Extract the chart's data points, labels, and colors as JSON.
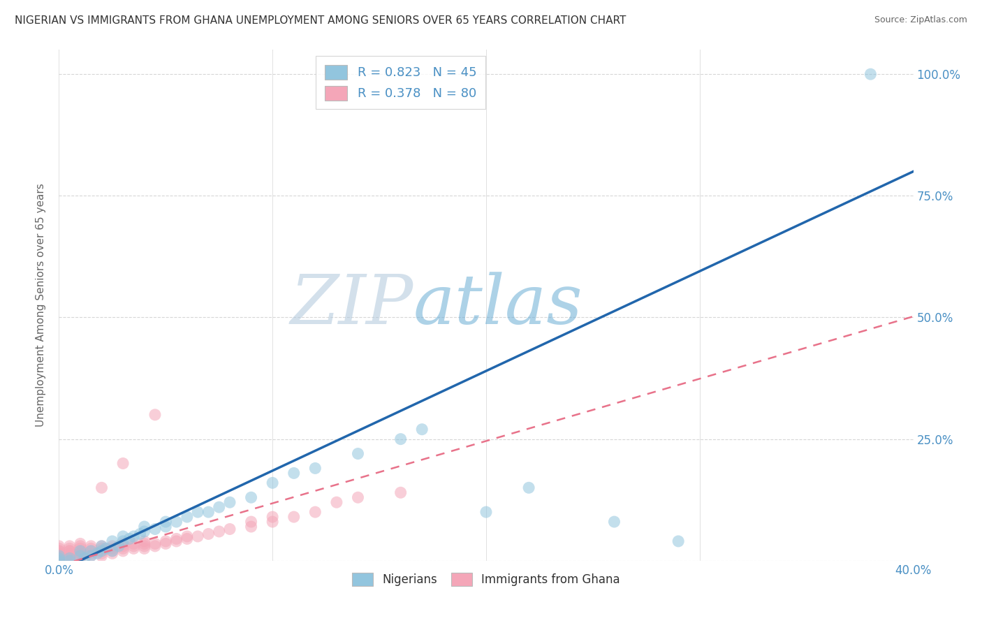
{
  "title": "NIGERIAN VS IMMIGRANTS FROM GHANA UNEMPLOYMENT AMONG SENIORS OVER 65 YEARS CORRELATION CHART",
  "source": "Source: ZipAtlas.com",
  "ylabel": "Unemployment Among Seniors over 65 years",
  "xlim": [
    0.0,
    0.4
  ],
  "ylim": [
    0.0,
    1.05
  ],
  "legend_r1": "R = 0.823   N = 45",
  "legend_r2": "R = 0.378   N = 80",
  "blue_color": "#92c5de",
  "pink_color": "#f4a6b8",
  "blue_line_color": "#2166ac",
  "pink_line_color": "#e8728a",
  "text_blue": "#4a90c4",
  "blue_line_slope": 2.05,
  "blue_line_intercept": -0.02,
  "pink_line_slope": 1.28,
  "pink_line_intercept": -0.01,
  "nigerians_x": [
    0.0,
    0.0,
    0.0,
    0.005,
    0.005,
    0.01,
    0.01,
    0.012,
    0.015,
    0.015,
    0.018,
    0.02,
    0.02,
    0.022,
    0.025,
    0.025,
    0.028,
    0.03,
    0.03,
    0.033,
    0.035,
    0.038,
    0.04,
    0.04,
    0.045,
    0.05,
    0.05,
    0.055,
    0.06,
    0.065,
    0.07,
    0.075,
    0.08,
    0.09,
    0.1,
    0.11,
    0.12,
    0.14,
    0.16,
    0.17,
    0.2,
    0.22,
    0.26,
    0.29,
    0.38
  ],
  "nigerians_y": [
    0.0,
    0.005,
    0.01,
    0.0,
    0.005,
    0.01,
    0.02,
    0.005,
    0.01,
    0.02,
    0.015,
    0.02,
    0.03,
    0.025,
    0.02,
    0.04,
    0.03,
    0.04,
    0.05,
    0.045,
    0.05,
    0.055,
    0.06,
    0.07,
    0.065,
    0.07,
    0.08,
    0.08,
    0.09,
    0.1,
    0.1,
    0.11,
    0.12,
    0.13,
    0.16,
    0.18,
    0.19,
    0.22,
    0.25,
    0.27,
    0.1,
    0.15,
    0.08,
    0.04,
    1.0
  ],
  "ghana_x": [
    0.0,
    0.0,
    0.0,
    0.0,
    0.0,
    0.0,
    0.0,
    0.0,
    0.0,
    0.0,
    0.0,
    0.0,
    0.0,
    0.005,
    0.005,
    0.005,
    0.005,
    0.005,
    0.005,
    0.005,
    0.005,
    0.005,
    0.01,
    0.01,
    0.01,
    0.01,
    0.01,
    0.01,
    0.01,
    0.01,
    0.01,
    0.015,
    0.015,
    0.015,
    0.015,
    0.015,
    0.02,
    0.02,
    0.02,
    0.02,
    0.02,
    0.025,
    0.025,
    0.025,
    0.025,
    0.03,
    0.03,
    0.03,
    0.03,
    0.035,
    0.035,
    0.035,
    0.04,
    0.04,
    0.04,
    0.04,
    0.045,
    0.045,
    0.05,
    0.05,
    0.055,
    0.055,
    0.06,
    0.06,
    0.065,
    0.07,
    0.075,
    0.08,
    0.09,
    0.09,
    0.1,
    0.1,
    0.11,
    0.12,
    0.13,
    0.14,
    0.16,
    0.045,
    0.03,
    0.02
  ],
  "ghana_y": [
    0.0,
    0.0,
    0.0,
    0.005,
    0.005,
    0.01,
    0.01,
    0.015,
    0.015,
    0.02,
    0.02,
    0.025,
    0.03,
    0.0,
    0.005,
    0.01,
    0.01,
    0.015,
    0.02,
    0.02,
    0.025,
    0.03,
    0.005,
    0.01,
    0.01,
    0.015,
    0.015,
    0.02,
    0.025,
    0.03,
    0.035,
    0.01,
    0.015,
    0.02,
    0.025,
    0.03,
    0.01,
    0.015,
    0.02,
    0.025,
    0.03,
    0.015,
    0.02,
    0.025,
    0.03,
    0.02,
    0.025,
    0.03,
    0.035,
    0.025,
    0.03,
    0.035,
    0.025,
    0.03,
    0.035,
    0.04,
    0.03,
    0.035,
    0.035,
    0.04,
    0.04,
    0.045,
    0.045,
    0.05,
    0.05,
    0.055,
    0.06,
    0.065,
    0.07,
    0.08,
    0.08,
    0.09,
    0.09,
    0.1,
    0.12,
    0.13,
    0.14,
    0.3,
    0.2,
    0.15
  ]
}
